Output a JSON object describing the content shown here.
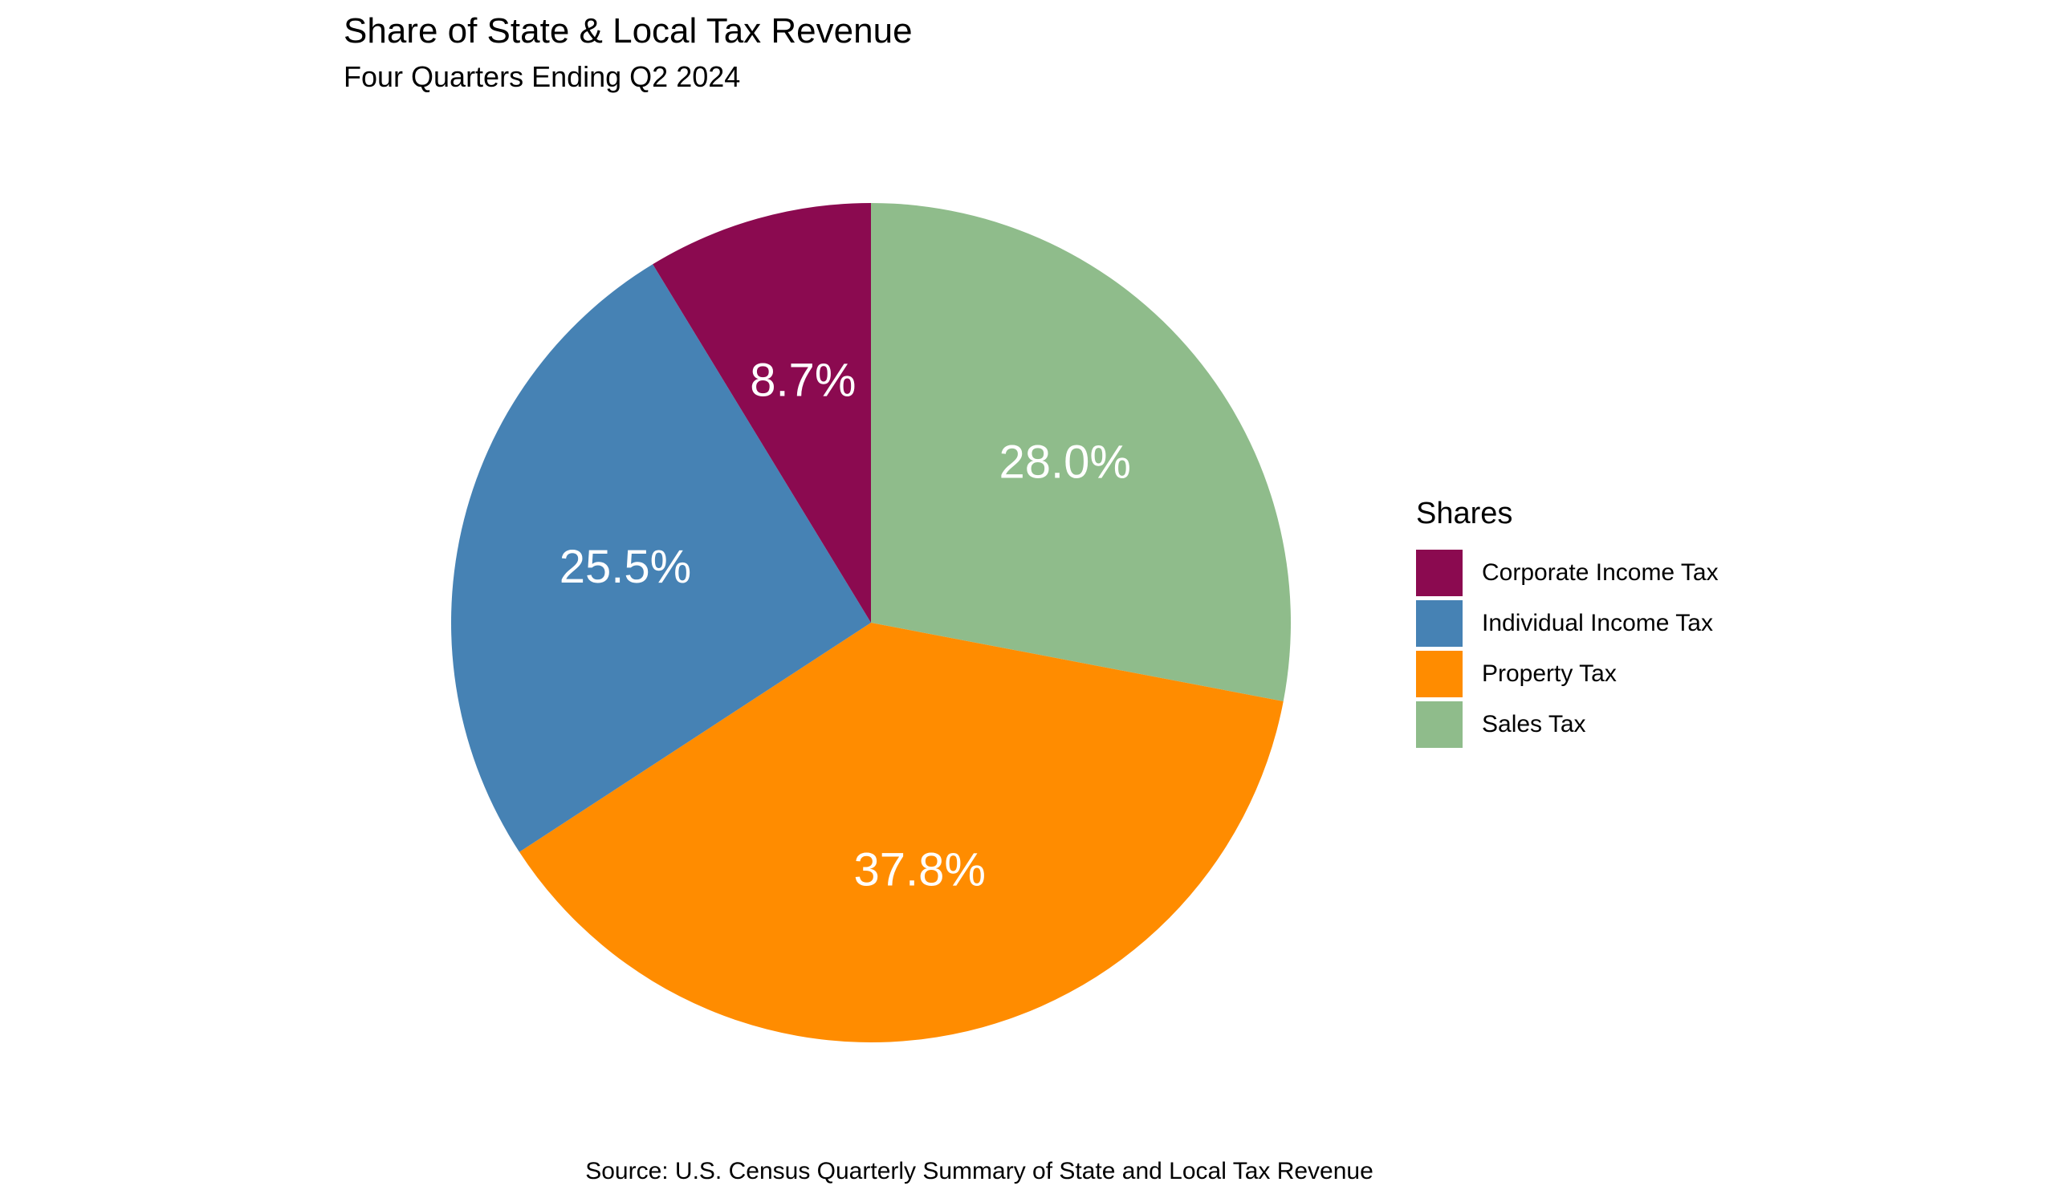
{
  "chart_data": {
    "type": "pie",
    "title": "Share of State & Local Tax Revenue",
    "subtitle": "Four Quarters Ending Q2 2024",
    "caption": "Source: U.S. Census Quarterly Summary of State and Local Tax Revenue",
    "legend": {
      "title": "Shares",
      "position": "right"
    },
    "slices": [
      {
        "name": "Sales Tax",
        "value": 28.0,
        "label": "28.0%",
        "color": "#8fbc8b"
      },
      {
        "name": "Property Tax",
        "value": 37.8,
        "label": "37.8%",
        "color": "#ff8c00"
      },
      {
        "name": "Individual Income Tax",
        "value": 25.5,
        "label": "25.5%",
        "color": "#4682b4"
      },
      {
        "name": "Corporate Income Tax",
        "value": 8.7,
        "label": "8.7%",
        "color": "#8b0a50"
      }
    ],
    "legend_order": [
      "Corporate Income Tax",
      "Individual Income Tax",
      "Property Tax",
      "Sales Tax"
    ],
    "direction": "clockwise",
    "start_angle": "12 o'clock"
  }
}
